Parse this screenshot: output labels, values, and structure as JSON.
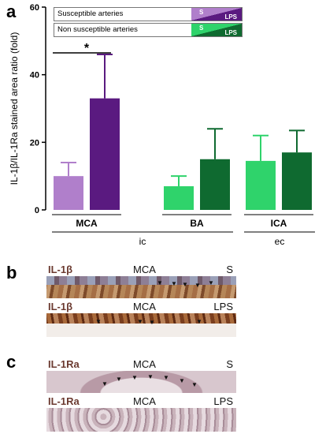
{
  "panels": {
    "a": "a",
    "b": "b",
    "c": "c"
  },
  "legend": {
    "susceptible": "Susceptible arteries",
    "non_susceptible": "Non susceptible arteries",
    "swatch_s": "S",
    "swatch_lps": "LPS"
  },
  "colors": {
    "mca_s": "#b07fcb",
    "mca_lps": "#5a1a80",
    "ba_s": "#2fd36b",
    "ba_lps": "#0f6a30",
    "ica_s": "#2fd36b",
    "ica_lps": "#0f6a30"
  },
  "chart_data": {
    "type": "bar",
    "ylabel": "IL-1β/IL-1Ra stained area ratio (fold)",
    "ylim": [
      0,
      60
    ],
    "yticks": [
      "0",
      "20",
      "40",
      "60"
    ],
    "groups": [
      {
        "name": "MCA",
        "bars": [
          {
            "condition": "S",
            "value": 10,
            "error": 4
          },
          {
            "condition": "LPS",
            "value": 33,
            "error": 13
          }
        ]
      },
      {
        "name": "BA",
        "bars": [
          {
            "condition": "S",
            "value": 7,
            "error": 3
          },
          {
            "condition": "LPS",
            "value": 15,
            "error": 9
          }
        ]
      },
      {
        "name": "ICA",
        "bars": [
          {
            "condition": "S",
            "value": 14.5,
            "error": 7.5
          },
          {
            "condition": "LPS",
            "value": 17,
            "error": 6.5
          }
        ]
      }
    ],
    "significance": "*",
    "region_labels": [
      "ic",
      "ec"
    ]
  },
  "micrographs": [
    {
      "stain": "IL-1β",
      "vessel": "MCA",
      "condition": "S"
    },
    {
      "stain": "IL-1β",
      "vessel": "MCA",
      "condition": "LPS"
    },
    {
      "stain": "IL-1Ra",
      "vessel": "MCA",
      "condition": "S"
    },
    {
      "stain": "IL-1Ra",
      "vessel": "MCA",
      "condition": "LPS"
    }
  ]
}
